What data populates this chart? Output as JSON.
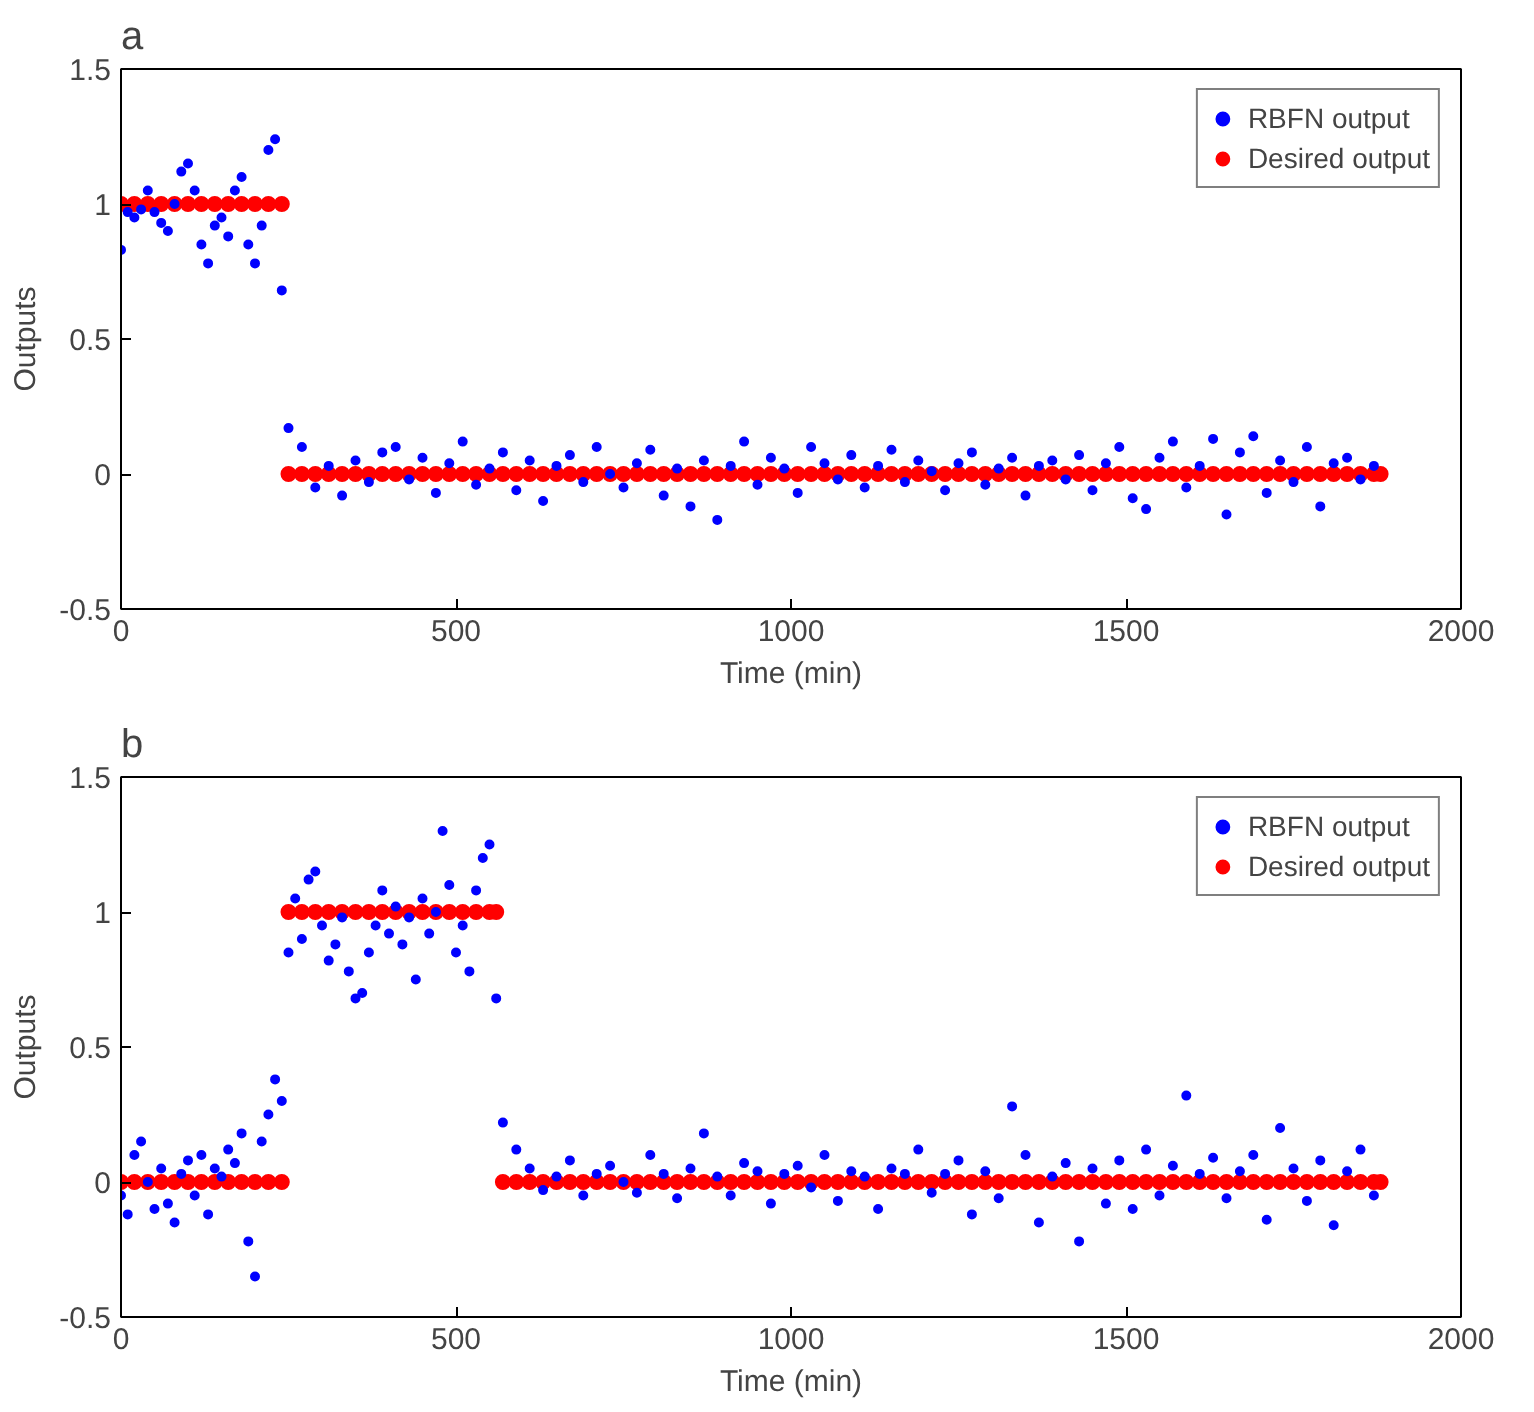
{
  "chart_data": [
    {
      "type": "scatter",
      "title": "a",
      "xlabel": "Time (min)",
      "ylabel": "Outputs",
      "xlim": [
        0,
        2000
      ],
      "ylim": [
        -0.5,
        1.5
      ],
      "xticks": [
        0,
        500,
        1000,
        1500,
        2000
      ],
      "yticks": [
        -0.5,
        0,
        0.5,
        1,
        1.5
      ],
      "grid": false,
      "legend": "top right",
      "marker": "circle",
      "series": [
        {
          "name": "RBFN output",
          "color": "#0000ff",
          "x": [
            0,
            10,
            20,
            30,
            40,
            50,
            60,
            70,
            80,
            90,
            100,
            110,
            120,
            130,
            140,
            150,
            160,
            170,
            180,
            190,
            200,
            210,
            220,
            230,
            240,
            250,
            270,
            290,
            310,
            330,
            350,
            370,
            390,
            410,
            430,
            450,
            470,
            490,
            510,
            530,
            550,
            570,
            590,
            610,
            630,
            650,
            670,
            690,
            710,
            730,
            750,
            770,
            790,
            810,
            830,
            850,
            870,
            890,
            910,
            930,
            950,
            970,
            990,
            1010,
            1030,
            1050,
            1070,
            1090,
            1110,
            1130,
            1150,
            1170,
            1190,
            1210,
            1230,
            1250,
            1270,
            1290,
            1310,
            1330,
            1350,
            1370,
            1390,
            1410,
            1430,
            1450,
            1470,
            1490,
            1510,
            1530,
            1550,
            1570,
            1590,
            1610,
            1630,
            1650,
            1670,
            1690,
            1710,
            1730,
            1750,
            1770,
            1790,
            1810,
            1830,
            1850,
            1870
          ],
          "values": [
            0.83,
            0.97,
            0.95,
            0.98,
            1.05,
            0.97,
            0.93,
            0.9,
            1.0,
            1.12,
            1.15,
            1.05,
            0.85,
            0.78,
            0.92,
            0.95,
            0.88,
            1.05,
            1.1,
            0.85,
            0.78,
            0.92,
            1.2,
            1.24,
            0.68,
            0.17,
            0.1,
            -0.05,
            0.03,
            -0.08,
            0.05,
            -0.03,
            0.08,
            0.1,
            -0.02,
            0.06,
            -0.07,
            0.04,
            0.12,
            -0.04,
            0.02,
            0.08,
            -0.06,
            0.05,
            -0.1,
            0.03,
            0.07,
            -0.03,
            0.1,
            0.0,
            -0.05,
            0.04,
            0.09,
            -0.08,
            0.02,
            -0.12,
            0.05,
            -0.17,
            0.03,
            0.12,
            -0.04,
            0.06,
            0.02,
            -0.07,
            0.1,
            0.04,
            -0.02,
            0.07,
            -0.05,
            0.03,
            0.09,
            -0.03,
            0.05,
            0.01,
            -0.06,
            0.04,
            0.08,
            -0.04,
            0.02,
            0.06,
            -0.08,
            0.03,
            0.05,
            -0.02,
            0.07,
            -0.06,
            0.04,
            0.1,
            -0.09,
            -0.13,
            0.06,
            0.12,
            -0.05,
            0.03,
            0.13,
            -0.15,
            0.08,
            0.14,
            -0.07,
            0.05,
            -0.03,
            0.1,
            -0.12,
            0.04,
            0.06,
            -0.02,
            0.03
          ]
        },
        {
          "name": "Desired output",
          "color": "#ff0000",
          "x": [
            0,
            20,
            40,
            60,
            80,
            100,
            120,
            140,
            160,
            180,
            200,
            220,
            240,
            250,
            270,
            290,
            310,
            330,
            350,
            370,
            390,
            410,
            430,
            450,
            470,
            490,
            510,
            530,
            550,
            570,
            590,
            610,
            630,
            650,
            670,
            690,
            710,
            730,
            750,
            770,
            790,
            810,
            830,
            850,
            870,
            890,
            910,
            930,
            950,
            970,
            990,
            1010,
            1030,
            1050,
            1070,
            1090,
            1110,
            1130,
            1150,
            1170,
            1190,
            1210,
            1230,
            1250,
            1270,
            1290,
            1310,
            1330,
            1350,
            1370,
            1390,
            1410,
            1430,
            1450,
            1470,
            1490,
            1510,
            1530,
            1550,
            1570,
            1590,
            1610,
            1630,
            1650,
            1670,
            1690,
            1710,
            1730,
            1750,
            1770,
            1790,
            1810,
            1830,
            1850,
            1870,
            1880
          ],
          "values": [
            1,
            1,
            1,
            1,
            1,
            1,
            1,
            1,
            1,
            1,
            1,
            1,
            1,
            0,
            0,
            0,
            0,
            0,
            0,
            0,
            0,
            0,
            0,
            0,
            0,
            0,
            0,
            0,
            0,
            0,
            0,
            0,
            0,
            0,
            0,
            0,
            0,
            0,
            0,
            0,
            0,
            0,
            0,
            0,
            0,
            0,
            0,
            0,
            0,
            0,
            0,
            0,
            0,
            0,
            0,
            0,
            0,
            0,
            0,
            0,
            0,
            0,
            0,
            0,
            0,
            0,
            0,
            0,
            0,
            0,
            0,
            0,
            0,
            0,
            0,
            0,
            0,
            0,
            0,
            0,
            0,
            0,
            0,
            0,
            0,
            0,
            0,
            0,
            0,
            0,
            0,
            0,
            0,
            0,
            0,
            0
          ]
        }
      ]
    },
    {
      "type": "scatter",
      "title": "b",
      "xlabel": "Time (min)",
      "ylabel": "Outputs",
      "xlim": [
        0,
        2000
      ],
      "ylim": [
        -0.5,
        1.5
      ],
      "xticks": [
        0,
        500,
        1000,
        1500,
        2000
      ],
      "yticks": [
        -0.5,
        0,
        0.5,
        1,
        1.5
      ],
      "grid": false,
      "legend": "top right",
      "marker": "circle",
      "series": [
        {
          "name": "RBFN output",
          "color": "#0000ff",
          "x": [
            0,
            10,
            20,
            30,
            40,
            50,
            60,
            70,
            80,
            90,
            100,
            110,
            120,
            130,
            140,
            150,
            160,
            170,
            180,
            190,
            200,
            210,
            220,
            230,
            240,
            250,
            260,
            270,
            280,
            290,
            300,
            310,
            320,
            330,
            340,
            350,
            360,
            370,
            380,
            390,
            400,
            410,
            420,
            430,
            440,
            450,
            460,
            470,
            480,
            490,
            500,
            510,
            520,
            530,
            540,
            550,
            560,
            570,
            590,
            610,
            630,
            650,
            670,
            690,
            710,
            730,
            750,
            770,
            790,
            810,
            830,
            850,
            870,
            890,
            910,
            930,
            950,
            970,
            990,
            1010,
            1030,
            1050,
            1070,
            1090,
            1110,
            1130,
            1150,
            1170,
            1190,
            1210,
            1230,
            1250,
            1270,
            1290,
            1310,
            1330,
            1350,
            1370,
            1390,
            1410,
            1430,
            1450,
            1470,
            1490,
            1510,
            1530,
            1550,
            1570,
            1590,
            1610,
            1630,
            1650,
            1670,
            1690,
            1710,
            1730,
            1750,
            1770,
            1790,
            1810,
            1830,
            1850,
            1870
          ],
          "values": [
            -0.05,
            -0.12,
            0.1,
            0.15,
            0.0,
            -0.1,
            0.05,
            -0.08,
            -0.15,
            0.03,
            0.08,
            -0.05,
            0.1,
            -0.12,
            0.05,
            0.02,
            0.12,
            0.07,
            0.18,
            -0.22,
            -0.35,
            0.15,
            0.25,
            0.38,
            0.3,
            0.85,
            1.05,
            0.9,
            1.12,
            1.15,
            0.95,
            0.82,
            0.88,
            0.98,
            0.78,
            0.68,
            0.7,
            0.85,
            0.95,
            1.08,
            0.92,
            1.02,
            0.88,
            0.98,
            0.75,
            1.05,
            0.92,
            1.0,
            1.3,
            1.1,
            0.85,
            0.95,
            0.78,
            1.08,
            1.2,
            1.25,
            0.68,
            0.22,
            0.12,
            0.05,
            -0.03,
            0.02,
            0.08,
            -0.05,
            0.03,
            0.06,
            0.0,
            -0.04,
            0.1,
            0.03,
            -0.06,
            0.05,
            0.18,
            0.02,
            -0.05,
            0.07,
            0.04,
            -0.08,
            0.03,
            0.06,
            -0.02,
            0.1,
            -0.07,
            0.04,
            0.02,
            -0.1,
            0.05,
            0.03,
            0.12,
            -0.04,
            0.03,
            0.08,
            -0.12,
            0.04,
            -0.06,
            0.28,
            0.1,
            -0.15,
            0.02,
            0.07,
            -0.22,
            0.05,
            -0.08,
            0.08,
            -0.1,
            0.12,
            -0.05,
            0.06,
            0.32,
            0.03,
            0.09,
            -0.06,
            0.04,
            0.1,
            -0.14,
            0.2,
            0.05,
            -0.07,
            0.08,
            -0.16,
            0.04,
            0.12,
            -0.05
          ]
        },
        {
          "name": "Desired output",
          "color": "#ff0000",
          "x": [
            0,
            20,
            40,
            60,
            80,
            100,
            120,
            140,
            160,
            180,
            200,
            220,
            240,
            250,
            270,
            290,
            310,
            330,
            350,
            370,
            390,
            410,
            430,
            450,
            470,
            490,
            510,
            530,
            550,
            560,
            570,
            590,
            610,
            630,
            650,
            670,
            690,
            710,
            730,
            750,
            770,
            790,
            810,
            830,
            850,
            870,
            890,
            910,
            930,
            950,
            970,
            990,
            1010,
            1030,
            1050,
            1070,
            1090,
            1110,
            1130,
            1150,
            1170,
            1190,
            1210,
            1230,
            1250,
            1270,
            1290,
            1310,
            1330,
            1350,
            1370,
            1390,
            1410,
            1430,
            1450,
            1470,
            1490,
            1510,
            1530,
            1550,
            1570,
            1590,
            1610,
            1630,
            1650,
            1670,
            1690,
            1710,
            1730,
            1750,
            1770,
            1790,
            1810,
            1830,
            1850,
            1870,
            1880
          ],
          "values": [
            0,
            0,
            0,
            0,
            0,
            0,
            0,
            0,
            0,
            0,
            0,
            0,
            0,
            1,
            1,
            1,
            1,
            1,
            1,
            1,
            1,
            1,
            1,
            1,
            1,
            1,
            1,
            1,
            1,
            1,
            0,
            0,
            0,
            0,
            0,
            0,
            0,
            0,
            0,
            0,
            0,
            0,
            0,
            0,
            0,
            0,
            0,
            0,
            0,
            0,
            0,
            0,
            0,
            0,
            0,
            0,
            0,
            0,
            0,
            0,
            0,
            0,
            0,
            0,
            0,
            0,
            0,
            0,
            0,
            0,
            0,
            0,
            0,
            0,
            0,
            0,
            0,
            0,
            0,
            0,
            0,
            0,
            0,
            0,
            0,
            0,
            0,
            0,
            0,
            0,
            0,
            0,
            0,
            0,
            0,
            0,
            0
          ]
        }
      ]
    }
  ]
}
